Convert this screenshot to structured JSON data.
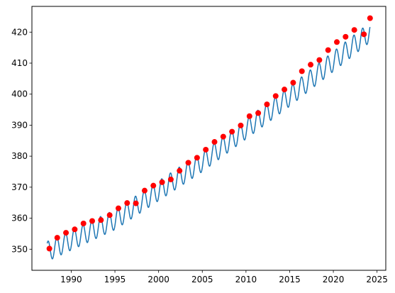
{
  "chart_data": {
    "type": "line",
    "title": "",
    "xlabel": "",
    "ylabel": "",
    "xlim": [
      1985.5,
      2026.0
    ],
    "ylim": [
      343.2,
      428.3
    ],
    "x_ticks": [
      1990,
      1995,
      2000,
      2005,
      2010,
      2015,
      2020,
      2025
    ],
    "x_tick_labels": [
      "1990",
      "1995",
      "2000",
      "2005",
      "2010",
      "2015",
      "2020",
      "2025"
    ],
    "y_ticks": [
      350,
      360,
      370,
      380,
      390,
      400,
      410,
      420
    ],
    "y_tick_labels": [
      "350",
      "360",
      "370",
      "380",
      "390",
      "400",
      "410",
      "420"
    ],
    "grid": false,
    "legend": "none",
    "series": [
      {
        "kind": "line",
        "color": "#1f77b4",
        "x_start": 1987.25,
        "x_end": 2024.2,
        "seasonal_amplitude": 3.2,
        "trend_points": [
          [
            1987.25,
            349.3
          ],
          [
            1995.0,
            359.5
          ],
          [
            2005.0,
            378.2
          ],
          [
            2015.0,
            399.3
          ],
          [
            2024.2,
            420.0
          ]
        ]
      },
      {
        "kind": "scatter",
        "marker": "circle",
        "color": "#ff0000",
        "x": [
          1987.5,
          1988.4,
          1989.4,
          1990.4,
          1991.4,
          1992.4,
          1993.4,
          1994.4,
          1995.4,
          1996.4,
          1997.4,
          1998.4,
          1999.4,
          2000.4,
          2001.4,
          2002.4,
          2003.4,
          2004.4,
          2005.4,
          2006.4,
          2007.4,
          2008.4,
          2009.4,
          2010.4,
          2011.4,
          2012.4,
          2013.4,
          2014.4,
          2015.4,
          2016.4,
          2017.4,
          2018.4,
          2019.4,
          2020.4,
          2021.4,
          2022.4,
          2023.5,
          2024.2
        ],
        "y": [
          350.2,
          353.7,
          355.3,
          356.4,
          358.3,
          359.1,
          359.4,
          361.0,
          363.2,
          364.9,
          364.8,
          368.9,
          370.5,
          371.6,
          372.5,
          375.3,
          377.9,
          379.5,
          382.1,
          384.6,
          386.3,
          387.9,
          389.9,
          392.9,
          393.9,
          396.7,
          399.4,
          401.5,
          403.7,
          407.4,
          409.5,
          411.0,
          414.2,
          416.8,
          418.5,
          420.7,
          419.3,
          424.5
        ]
      }
    ]
  }
}
